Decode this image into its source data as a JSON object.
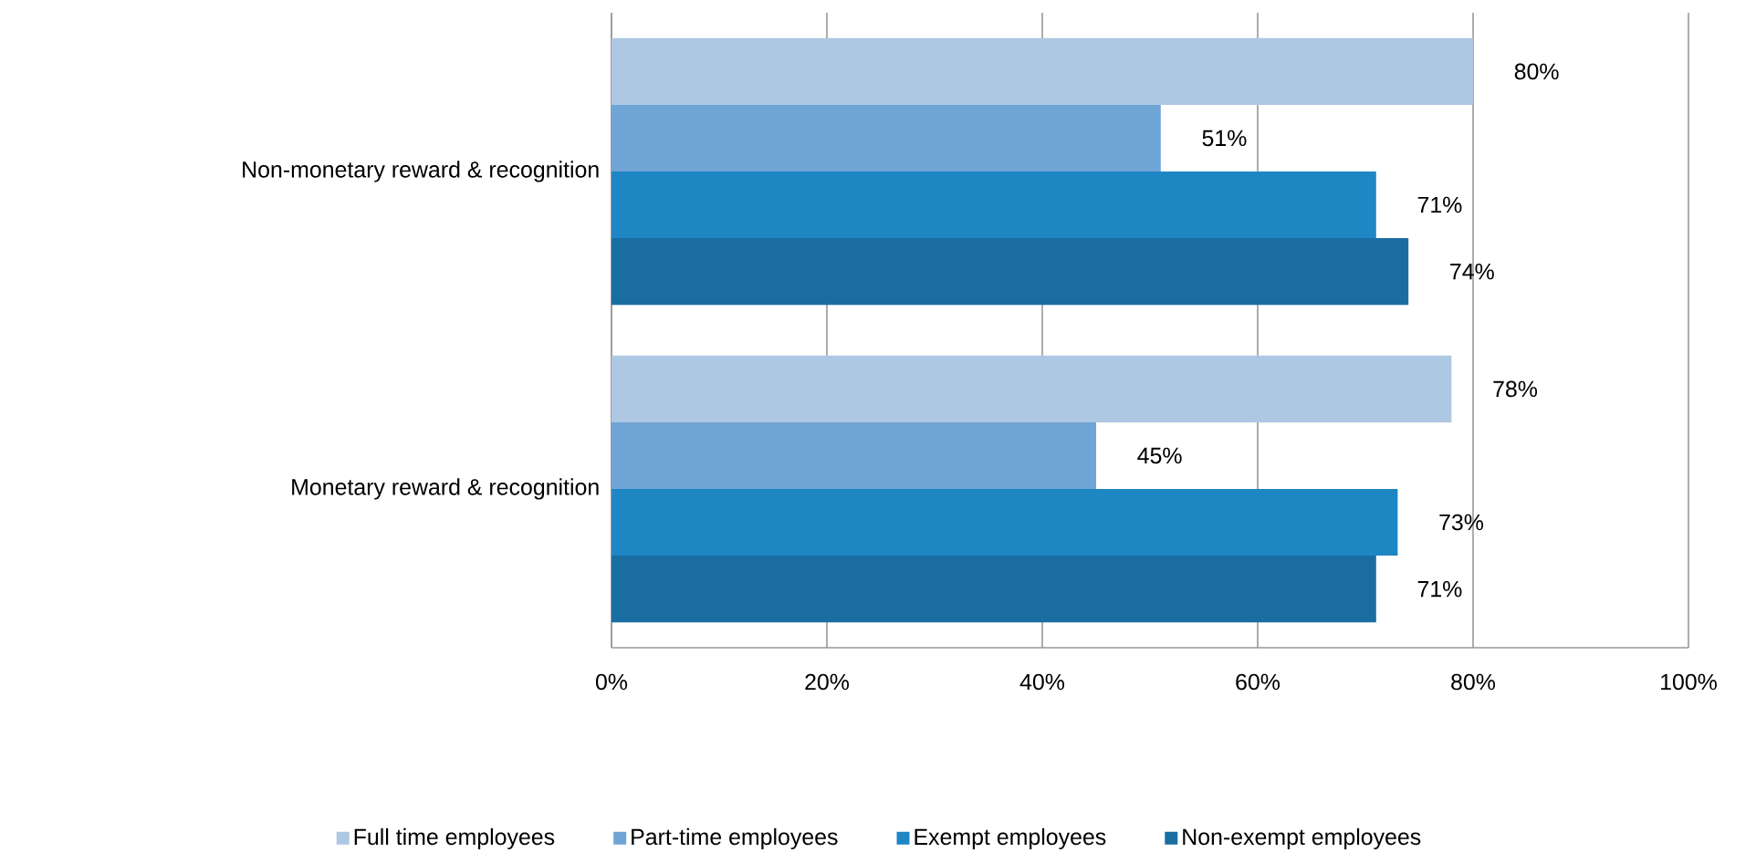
{
  "chart_data": {
    "type": "bar",
    "orientation": "horizontal",
    "categories": [
      "Non-monetary reward & recognition",
      "Monetary reward & recognition"
    ],
    "series": [
      {
        "name": "Full time employees",
        "color": "#aec8e3",
        "values": [
          80,
          78
        ],
        "value_labels": [
          "80%",
          "78%"
        ]
      },
      {
        "name": "Part-time employees",
        "color": "#6fa5d6",
        "values": [
          51,
          45
        ],
        "value_labels": [
          "51%",
          "45%"
        ]
      },
      {
        "name": "Exempt employees",
        "color": "#1f86c4",
        "values": [
          71,
          73
        ],
        "value_labels": [
          "71%",
          "73%"
        ]
      },
      {
        "name": "Non-exempt employees",
        "color": "#1a6da1",
        "values": [
          74,
          71
        ],
        "value_labels": [
          "74%",
          "71%"
        ]
      }
    ],
    "xlim": [
      0,
      100
    ],
    "xticks": [
      {
        "value": 0,
        "label": "0%"
      },
      {
        "value": 20,
        "label": "20%"
      },
      {
        "value": 40,
        "label": "40%"
      },
      {
        "value": 60,
        "label": "60%"
      },
      {
        "value": 80,
        "label": "80%"
      },
      {
        "value": 100,
        "label": "100%"
      }
    ],
    "grid": "x",
    "legend": "bottom"
  }
}
